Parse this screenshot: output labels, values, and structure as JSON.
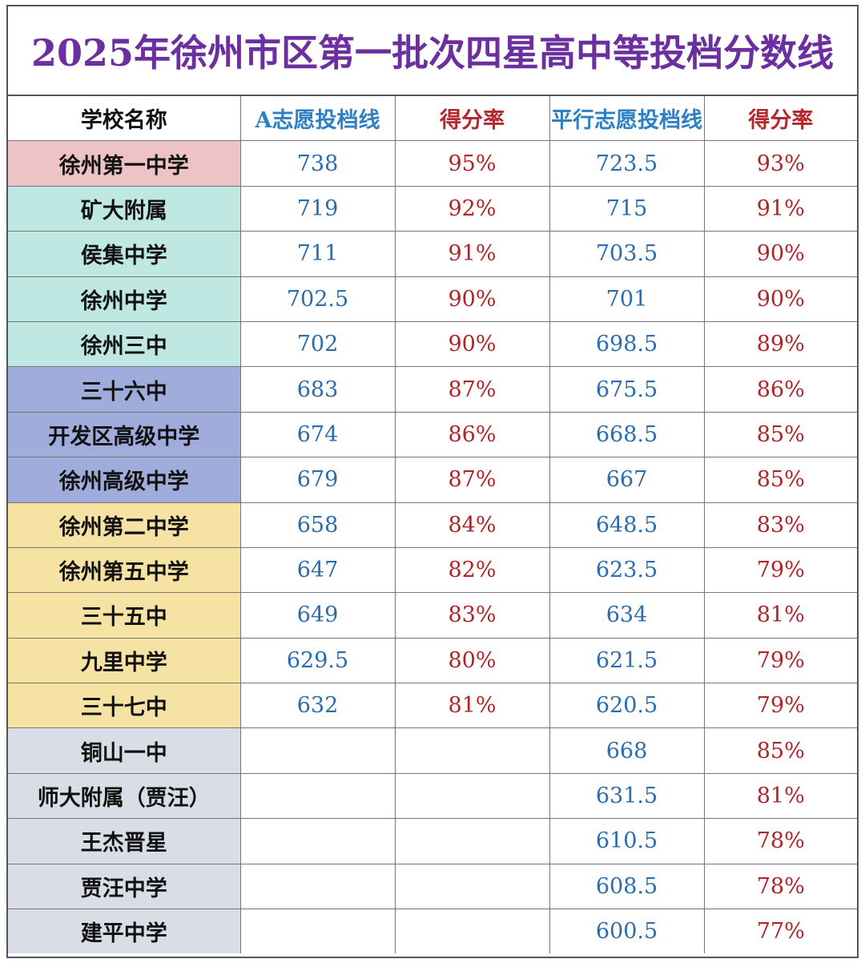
{
  "title": "2025年徐州市区第一批次四星高中等投档分数线",
  "headers": [
    "学校名称",
    "A志愿投档线",
    "得分率",
    "平行志愿投档线",
    "得分率"
  ],
  "colors": {
    "pink": "#eec3c5",
    "teal": "#bfe8e3",
    "blue": "#9facdc",
    "yellow": "#f6e2a3",
    "gray": "#d9dde5"
  },
  "rows": [
    {
      "school": "徐州第一中学",
      "a_score": "738",
      "a_rate": "95%",
      "p_score": "723.5",
      "p_rate": "93%",
      "group": "pink"
    },
    {
      "school": "矿大附属",
      "a_score": "719",
      "a_rate": "92%",
      "p_score": "715",
      "p_rate": "91%",
      "group": "teal"
    },
    {
      "school": "侯集中学",
      "a_score": "711",
      "a_rate": "91%",
      "p_score": "703.5",
      "p_rate": "90%",
      "group": "teal"
    },
    {
      "school": "徐州中学",
      "a_score": "702.5",
      "a_rate": "90%",
      "p_score": "701",
      "p_rate": "90%",
      "group": "teal"
    },
    {
      "school": "徐州三中",
      "a_score": "702",
      "a_rate": "90%",
      "p_score": "698.5",
      "p_rate": "89%",
      "group": "teal"
    },
    {
      "school": "三十六中",
      "a_score": "683",
      "a_rate": "87%",
      "p_score": "675.5",
      "p_rate": "86%",
      "group": "blue"
    },
    {
      "school": "开发区高级中学",
      "a_score": "674",
      "a_rate": "86%",
      "p_score": "668.5",
      "p_rate": "85%",
      "group": "blue"
    },
    {
      "school": "徐州高级中学",
      "a_score": "679",
      "a_rate": "87%",
      "p_score": "667",
      "p_rate": "85%",
      "group": "blue"
    },
    {
      "school": "徐州第二中学",
      "a_score": "658",
      "a_rate": "84%",
      "p_score": "648.5",
      "p_rate": "83%",
      "group": "yellow"
    },
    {
      "school": "徐州第五中学",
      "a_score": "647",
      "a_rate": "82%",
      "p_score": "623.5",
      "p_rate": "79%",
      "group": "yellow"
    },
    {
      "school": "三十五中",
      "a_score": "649",
      "a_rate": "83%",
      "p_score": "634",
      "p_rate": "81%",
      "group": "yellow"
    },
    {
      "school": "九里中学",
      "a_score": "629.5",
      "a_rate": "80%",
      "p_score": "621.5",
      "p_rate": "79%",
      "group": "yellow"
    },
    {
      "school": "三十七中",
      "a_score": "632",
      "a_rate": "81%",
      "p_score": "620.5",
      "p_rate": "79%",
      "group": "yellow"
    },
    {
      "school": "铜山一中",
      "a_score": "",
      "a_rate": "",
      "p_score": "668",
      "p_rate": "85%",
      "group": "gray"
    },
    {
      "school": "师大附属（贾汪）",
      "a_score": "",
      "a_rate": "",
      "p_score": "631.5",
      "p_rate": "81%",
      "group": "gray"
    },
    {
      "school": "王杰晋星",
      "a_score": "",
      "a_rate": "",
      "p_score": "610.5",
      "p_rate": "78%",
      "group": "gray"
    },
    {
      "school": "贾汪中学",
      "a_score": "",
      "a_rate": "",
      "p_score": "608.5",
      "p_rate": "78%",
      "group": "gray"
    },
    {
      "school": "建平中学",
      "a_score": "",
      "a_rate": "",
      "p_score": "600.5",
      "p_rate": "77%",
      "group": "gray"
    }
  ]
}
